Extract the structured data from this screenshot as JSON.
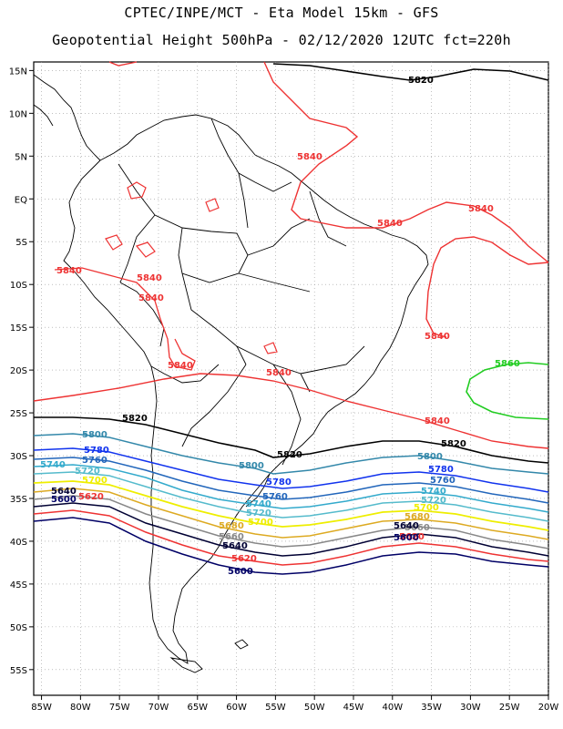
{
  "header": {
    "line1": "CPTEC/INPE/MCT -  Eta Model 15km - GFS",
    "line2": "Geopotential Height 500hPa - 02/12/2020 12UTC fct=220h"
  },
  "axes": {
    "lat_labels": [
      "15N",
      "10N",
      "5N",
      "EQ",
      "5S",
      "10S",
      "15S",
      "20S",
      "25S",
      "30S",
      "35S",
      "40S",
      "45S",
      "50S",
      "55S"
    ],
    "lat_values": [
      15,
      10,
      5,
      0,
      -5,
      -10,
      -15,
      -20,
      -25,
      -30,
      -35,
      -40,
      -45,
      -50,
      -55
    ],
    "lon_labels": [
      "85W",
      "80W",
      "75W",
      "70W",
      "65W",
      "60W",
      "55W",
      "50W",
      "45W",
      "40W",
      "35W",
      "30W",
      "25W",
      "20W"
    ],
    "lon_values": [
      -85,
      -80,
      -75,
      -70,
      -65,
      -60,
      -55,
      -50,
      -45,
      -40,
      -35,
      -30,
      -25,
      -20
    ],
    "lon_range": [
      -86,
      -20
    ],
    "lat_range": [
      -58,
      16
    ],
    "grid": "dotted"
  },
  "contours": [
    {
      "value": "5860",
      "color": "#22cc22"
    },
    {
      "value": "5840",
      "color": "#ee3333"
    },
    {
      "value": "5820",
      "color": "#000000"
    },
    {
      "value": "5800",
      "color": "#3388aa"
    },
    {
      "value": "5780",
      "color": "#1133ee"
    },
    {
      "value": "5760",
      "color": "#2266bb"
    },
    {
      "value": "5740",
      "color": "#33aacc"
    },
    {
      "value": "5720",
      "color": "#55bbcc"
    },
    {
      "value": "5700",
      "color": "#eeee00"
    },
    {
      "value": "5680",
      "color": "#ddaa22"
    },
    {
      "value": "5660",
      "color": "#888888"
    },
    {
      "value": "5640",
      "color": "#000033"
    },
    {
      "value": "5620",
      "color": "#ee3333"
    },
    {
      "value": "5600",
      "color": "#000066"
    }
  ]
}
